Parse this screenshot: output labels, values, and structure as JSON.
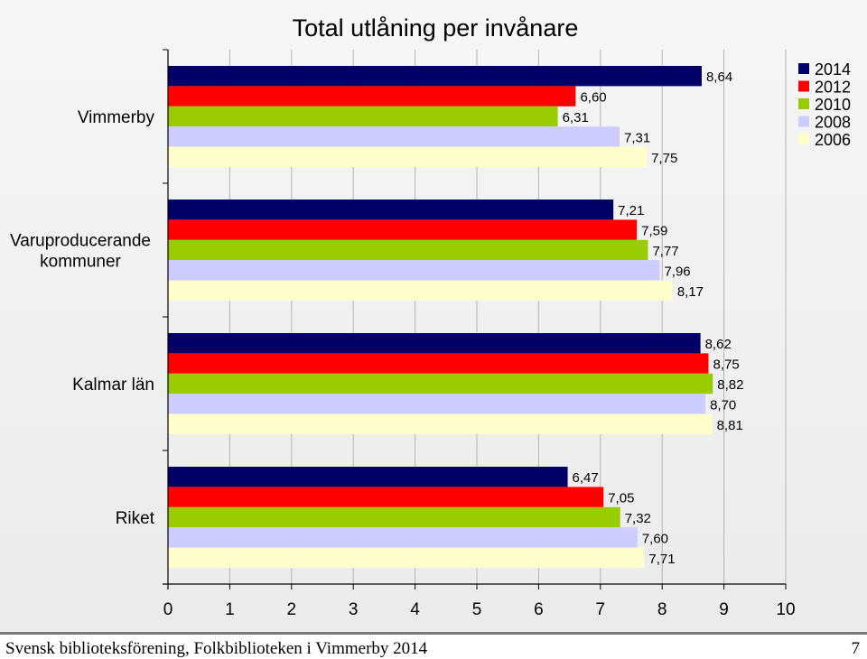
{
  "chart_data": {
    "type": "bar",
    "orientation": "horizontal",
    "title": "Total utlåning per invånare",
    "categories": [
      "Vimmerby",
      "Varuproducerande\nkommuner",
      "Kalmar län",
      "Riket"
    ],
    "series": [
      {
        "name": "2014",
        "color": "#000066",
        "values": [
          8.64,
          7.21,
          8.62,
          6.47
        ],
        "labels": [
          "8,64",
          "7,21",
          "8,62",
          "6,47"
        ]
      },
      {
        "name": "2012",
        "color": "#ff0000",
        "values": [
          6.6,
          7.59,
          8.75,
          7.05
        ],
        "labels": [
          "6,60",
          "7,59",
          "8,75",
          "7,05"
        ]
      },
      {
        "name": "2010",
        "color": "#99cc00",
        "values": [
          6.31,
          7.77,
          8.82,
          7.32
        ],
        "labels": [
          "6,31",
          "7,77",
          "8,82",
          "7,32"
        ]
      },
      {
        "name": "2008",
        "color": "#ccccff",
        "values": [
          7.31,
          7.96,
          8.7,
          7.6
        ],
        "labels": [
          "7,31",
          "7,96",
          "8,70",
          "7,60"
        ]
      },
      {
        "name": "2006",
        "color": "#ffffcc",
        "values": [
          7.75,
          8.17,
          8.81,
          7.71
        ],
        "labels": [
          "7,75",
          "8,17",
          "8,81",
          "7,71"
        ]
      }
    ],
    "xlim": [
      0,
      10
    ],
    "xticks": [
      "0",
      "1",
      "2",
      "3",
      "4",
      "5",
      "6",
      "7",
      "8",
      "9",
      "10"
    ],
    "grid": true,
    "legend": "top-right"
  },
  "footer": {
    "left": "Svensk biblioteksförening, Folkbiblioteken i Vimmerby 2014",
    "page": "7"
  }
}
